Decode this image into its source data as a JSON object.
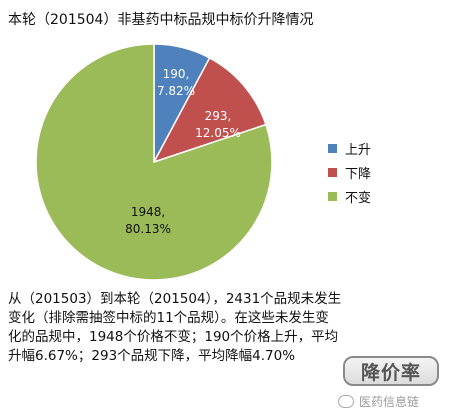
{
  "chart_data": {
    "type": "pie",
    "title": "本轮（201504）非基药中标品规中标价升降情况",
    "slices": [
      {
        "label": "上升",
        "value": 190,
        "percent": "7.82%",
        "color": "#4f81bd"
      },
      {
        "label": "下降",
        "value": 293,
        "percent": "12.05%",
        "color": "#c0504d"
      },
      {
        "label": "不变",
        "value": 1948,
        "percent": "80.13%",
        "color": "#9bbb59"
      }
    ],
    "legend_position": "right"
  },
  "paragraph": {
    "lines": [
      "从（201503）到本轮（201504），2431个品规未发生",
      "变化（排除需抽签中标的11个品规）。在这些未发生变",
      "化的品规中，1948个价格不变；190个价格上升，平均",
      "升幅6.67%；293个品规下降，平均降幅4.70%"
    ]
  },
  "badge": {
    "text": "降价率"
  },
  "watermark": {
    "text": "医药信息链",
    "icon": "wechat-icon"
  }
}
